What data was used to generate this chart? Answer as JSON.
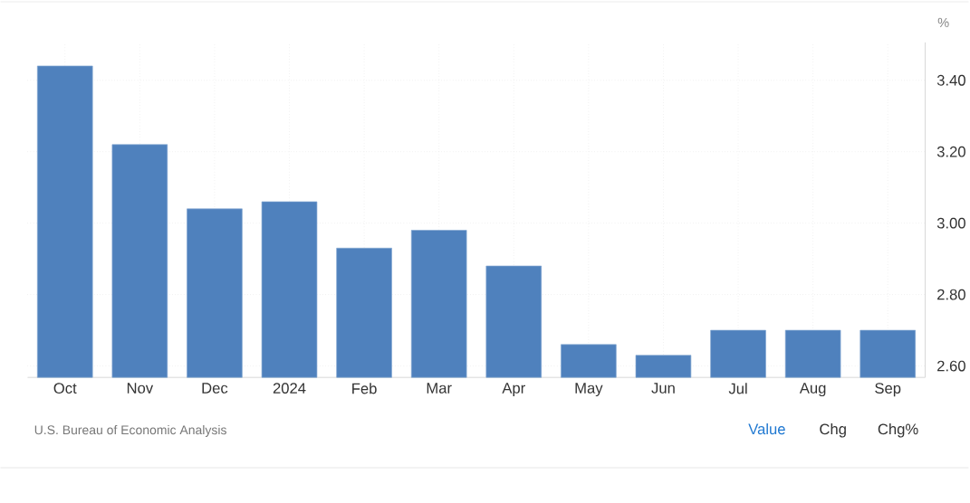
{
  "chart_data": {
    "type": "bar",
    "categories": [
      "Oct",
      "Nov",
      "Dec",
      "2024",
      "Feb",
      "Mar",
      "Apr",
      "May",
      "Jun",
      "Jul",
      "Aug",
      "Sep"
    ],
    "values": [
      3.44,
      3.22,
      3.04,
      3.06,
      2.93,
      2.98,
      2.88,
      2.66,
      2.63,
      2.7,
      2.7,
      2.7
    ],
    "color": "#4f81bd",
    "ylim": [
      2.568,
      3.506
    ],
    "yticks": [
      {
        "value": 2.6,
        "label": "2.60"
      },
      {
        "value": 2.8,
        "label": "2.80"
      },
      {
        "value": 3.0,
        "label": "3.00"
      },
      {
        "value": 3.2,
        "label": "3.20"
      },
      {
        "value": 3.4,
        "label": "3.40"
      }
    ],
    "grid": true,
    "annotations": [
      "%",
      "U.S. Bureau of Economic Analysis",
      "Value",
      "Chg",
      "Chg%"
    ]
  }
}
